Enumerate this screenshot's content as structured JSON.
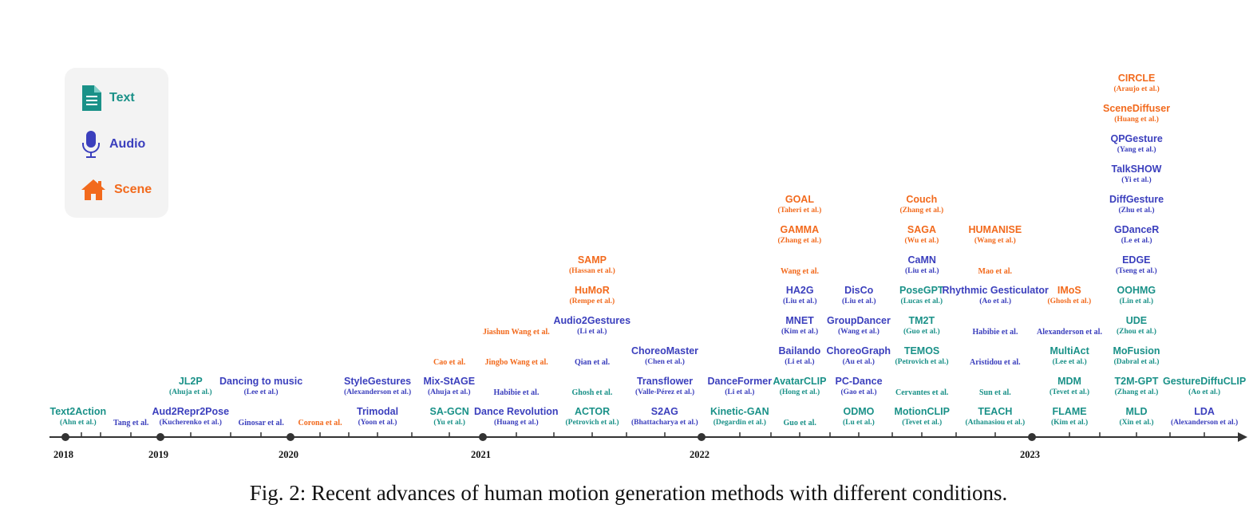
{
  "colors": {
    "text": "#1a9188",
    "audio": "#3b3fbd",
    "scene": "#f26a1d",
    "axis": "#333333"
  },
  "legend": {
    "items": [
      {
        "icon": "document-icon",
        "label": "Text",
        "color": "#1a9188"
      },
      {
        "icon": "microphone-icon",
        "label": "Audio",
        "color": "#3b3fbd"
      },
      {
        "icon": "house-icon",
        "label": "Scene",
        "color": "#f26a1d"
      }
    ]
  },
  "years": [
    "2018",
    "2019",
    "2020",
    "2021",
    "2022",
    "2023"
  ],
  "columns": [
    {
      "x": 98,
      "items": [
        {
          "name": "Text2Action",
          "author": "(Ahn et al.)",
          "cond": "text"
        }
      ]
    },
    {
      "x": 164,
      "items": [
        {
          "author": "Tang et al.",
          "cond": "audio"
        }
      ]
    },
    {
      "x": 239,
      "items": [
        {
          "name": "Aud2Repr2Pose",
          "author": "(Kucherenko et al.)",
          "cond": "audio"
        },
        {
          "name": "JL2P",
          "author": "(Ahuja et al.)",
          "cond": "text"
        }
      ]
    },
    {
      "x": 327,
      "items": [
        {
          "author": "Ginosar et al.",
          "cond": "audio"
        },
        {
          "name": "Dancing to music",
          "author": "(Lee et al.)",
          "cond": "audio"
        }
      ]
    },
    {
      "x": 401,
      "items": [
        {
          "author": "Corona et al.",
          "cond": "scene"
        }
      ]
    },
    {
      "x": 473,
      "items": [
        {
          "name": "Trimodal",
          "author": "(Yoon et al.)",
          "cond": "audio"
        },
        {
          "name": "StyleGestures",
          "author": "(Alexanderson et al.)",
          "cond": "audio"
        }
      ]
    },
    {
      "x": 563,
      "items": [
        {
          "name": "SA-GCN",
          "author": "(Yu et al.)",
          "cond": "text"
        },
        {
          "name": "Mix-StAGE",
          "author": "(Ahuja et al.)",
          "cond": "audio"
        },
        {
          "author": "Cao et al.",
          "cond": "scene"
        }
      ]
    },
    {
      "x": 647,
      "items": [
        {
          "name": "Dance Revolution",
          "author": "(Huang et al.)",
          "cond": "audio"
        },
        {
          "author": "Habibie et al.",
          "cond": "audio"
        },
        {
          "author": "Jingbo Wang et al.",
          "cond": "scene"
        },
        {
          "author": "Jiashun Wang et al.",
          "cond": "scene"
        }
      ]
    },
    {
      "x": 742,
      "items": [
        {
          "name": "ACTOR",
          "author": "(Petrovich et al.)",
          "cond": "text"
        },
        {
          "author": "Ghosh et al.",
          "cond": "text"
        },
        {
          "author": "Qian et al.",
          "cond": "audio"
        },
        {
          "name": "Audio2Gestures",
          "author": "(Li et al.)",
          "cond": "audio"
        },
        {
          "name": "HuMoR",
          "author": "(Rempe et al.)",
          "cond": "scene"
        },
        {
          "name": "SAMP",
          "author": "(Hassan et al.)",
          "cond": "scene"
        }
      ]
    },
    {
      "x": 833,
      "items": [
        {
          "name": "S2AG",
          "author": "(Bhattacharya et al.)",
          "cond": "audio"
        },
        {
          "name": "Transflower",
          "author": "(Valle-Pérez et al.)",
          "cond": "audio"
        },
        {
          "name": "ChoreoMaster",
          "author": "(Chen et al.)",
          "cond": "audio"
        }
      ]
    },
    {
      "x": 927,
      "items": [
        {
          "name": "Kinetic-GAN",
          "author": "(Degardin et al.)",
          "cond": "text"
        },
        {
          "name": "DanceFormer",
          "author": "(Li et al.)",
          "cond": "audio"
        }
      ]
    },
    {
      "x": 1002,
      "items": [
        {
          "author": "Guo et al.",
          "cond": "text"
        },
        {
          "name": "AvatarCLIP",
          "author": "(Hong et al.)",
          "cond": "text"
        },
        {
          "name": "Bailando",
          "author": "(Li et al.)",
          "cond": "audio"
        },
        {
          "name": "MNET",
          "author": "(Kim et al.)",
          "cond": "audio"
        },
        {
          "name": "HA2G",
          "author": "(Liu et al.)",
          "cond": "audio"
        },
        {
          "author": "Wang et al.",
          "cond": "scene"
        },
        {
          "name": "GAMMA",
          "author": "(Zhang et al.)",
          "cond": "scene"
        },
        {
          "name": "GOAL",
          "author": "(Taheri et al.)",
          "cond": "scene"
        }
      ]
    },
    {
      "x": 1076,
      "items": [
        {
          "name": "ODMO",
          "author": "(Lu et al.)",
          "cond": "text"
        },
        {
          "name": "PC-Dance",
          "author": "(Gao et al.)",
          "cond": "audio"
        },
        {
          "name": "ChoreoGraph",
          "author": "(Au et al.)",
          "cond": "audio"
        },
        {
          "name": "GroupDancer",
          "author": "(Wang et al.)",
          "cond": "audio"
        },
        {
          "name": "DisCo",
          "author": "(Liu et al.)",
          "cond": "audio"
        }
      ]
    },
    {
      "x": 1155,
      "items": [
        {
          "name": "MotionCLIP",
          "author": "(Tevet et al.)",
          "cond": "text"
        },
        {
          "author": "Cervantes et al.",
          "cond": "text"
        },
        {
          "name": "TEMOS",
          "author": "(Petrovich et al.)",
          "cond": "text"
        },
        {
          "name": "TM2T",
          "author": "(Guo et al.)",
          "cond": "text"
        },
        {
          "name": "PoseGPT",
          "author": "(Lucas et al.)",
          "cond": "text"
        },
        {
          "name": "CaMN",
          "author": "(Liu et al.)",
          "cond": "audio"
        },
        {
          "name": "SAGA",
          "author": "(Wu et al.)",
          "cond": "scene"
        },
        {
          "name": "Couch",
          "author": "(Zhang et al.)",
          "cond": "scene"
        }
      ]
    },
    {
      "x": 1247,
      "items": [
        {
          "name": "TEACH",
          "author": "(Athanasiou et al.)",
          "cond": "text"
        },
        {
          "author": "Sun et al.",
          "cond": "text"
        },
        {
          "author": "Aristidou et al.",
          "cond": "audio"
        },
        {
          "author": "Habibie et al.",
          "cond": "audio"
        },
        {
          "name": "Rhythmic Gesticulator",
          "author": "(Ao et al.)",
          "cond": "audio"
        },
        {
          "author": "Mao et al.",
          "cond": "scene"
        },
        {
          "name": "HUMANISE",
          "author": "(Wang et al.)",
          "cond": "scene"
        }
      ]
    },
    {
      "x": 1340,
      "items": [
        {
          "name": "FLAME",
          "author": "(Kim et al.)",
          "cond": "text"
        },
        {
          "name": "MDM",
          "author": "(Tevet et al.)",
          "cond": "text"
        },
        {
          "name": "MultiAct",
          "author": "(Lee et al.)",
          "cond": "text"
        },
        {
          "author": "Alexanderson et al.",
          "cond": "audio"
        },
        {
          "name": "IMoS",
          "author": "(Ghosh et al.)",
          "cond": "scene"
        }
      ]
    },
    {
      "x": 1424,
      "items": [
        {
          "name": "MLD",
          "author": "(Xin et al.)",
          "cond": "text"
        },
        {
          "name": "T2M-GPT",
          "author": "(Zhang et al.)",
          "cond": "text"
        },
        {
          "name": "MoFusion",
          "author": "(Dabral et al.)",
          "cond": "text"
        },
        {
          "name": "UDE",
          "author": "(Zhou et al.)",
          "cond": "text"
        },
        {
          "name": "OOHMG",
          "author": "(Lin et al.)",
          "cond": "text"
        },
        {
          "name": "EDGE",
          "author": "(Tseng et al.)",
          "cond": "audio"
        },
        {
          "name": "GDanceR",
          "author": "(Le et al.)",
          "cond": "audio"
        },
        {
          "name": "DiffGesture",
          "author": "(Zhu et al.)",
          "cond": "audio"
        },
        {
          "name": "TalkSHOW",
          "author": "(Yi et al.)",
          "cond": "audio"
        },
        {
          "name": "QPGesture",
          "author": "(Yang et al.)",
          "cond": "audio"
        },
        {
          "name": "SceneDiffuser",
          "author": "(Huang et al.)",
          "cond": "scene"
        },
        {
          "name": "CIRCLE",
          "author": "(Araujo et al.)",
          "cond": "scene"
        }
      ]
    },
    {
      "x": 1509,
      "items": [
        {
          "name": "LDA",
          "author": "(Alexanderson et al.)",
          "cond": "audio"
        },
        {
          "name": "GestureDiffuCLIP",
          "author": "(Ao et al.)",
          "cond": "text"
        }
      ]
    }
  ],
  "caption": "Fig. 2: Recent advances of human motion generation methods with different conditions."
}
